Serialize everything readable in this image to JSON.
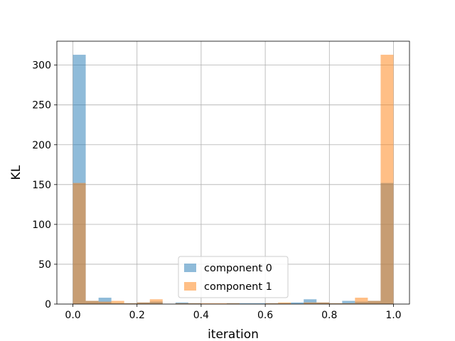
{
  "chart_data": {
    "type": "bar",
    "title": "",
    "xlabel": "iteration",
    "ylabel": "KL",
    "xlim": [
      -0.05,
      1.05
    ],
    "ylim": [
      0,
      330
    ],
    "xticks": [
      0.0,
      0.2,
      0.4,
      0.6,
      0.8,
      1.0
    ],
    "xtick_labels": [
      "0.0",
      "0.2",
      "0.4",
      "0.6",
      "0.8",
      "1.0"
    ],
    "yticks": [
      0,
      50,
      100,
      150,
      200,
      250,
      300
    ],
    "ytick_labels": [
      "0",
      "50",
      "100",
      "150",
      "200",
      "250",
      "300"
    ],
    "grid": true,
    "legend_position": "bottom-center",
    "bin_edges": [
      0.0,
      0.04,
      0.08,
      0.12,
      0.16,
      0.2,
      0.24,
      0.28,
      0.32,
      0.36,
      0.4,
      0.44,
      0.48,
      0.52,
      0.56,
      0.6,
      0.64,
      0.68,
      0.72,
      0.76,
      0.8,
      0.84,
      0.88,
      0.92,
      0.96,
      1.0
    ],
    "series": [
      {
        "name": "component 0",
        "color": "#1f77b4",
        "values": [
          313,
          4,
          8,
          1,
          1,
          2,
          3,
          0,
          2,
          1,
          0,
          0,
          1,
          1,
          1,
          1,
          1,
          2,
          6,
          2,
          1,
          4,
          3,
          4,
          152
        ]
      },
      {
        "name": "component 1",
        "color": "#ff7f0e",
        "values": [
          152,
          4,
          3,
          4,
          1,
          2,
          6,
          0,
          1,
          1,
          1,
          1,
          1,
          0,
          0,
          1,
          2,
          0,
          2,
          2,
          1,
          1,
          8,
          4,
          313
        ]
      }
    ]
  }
}
